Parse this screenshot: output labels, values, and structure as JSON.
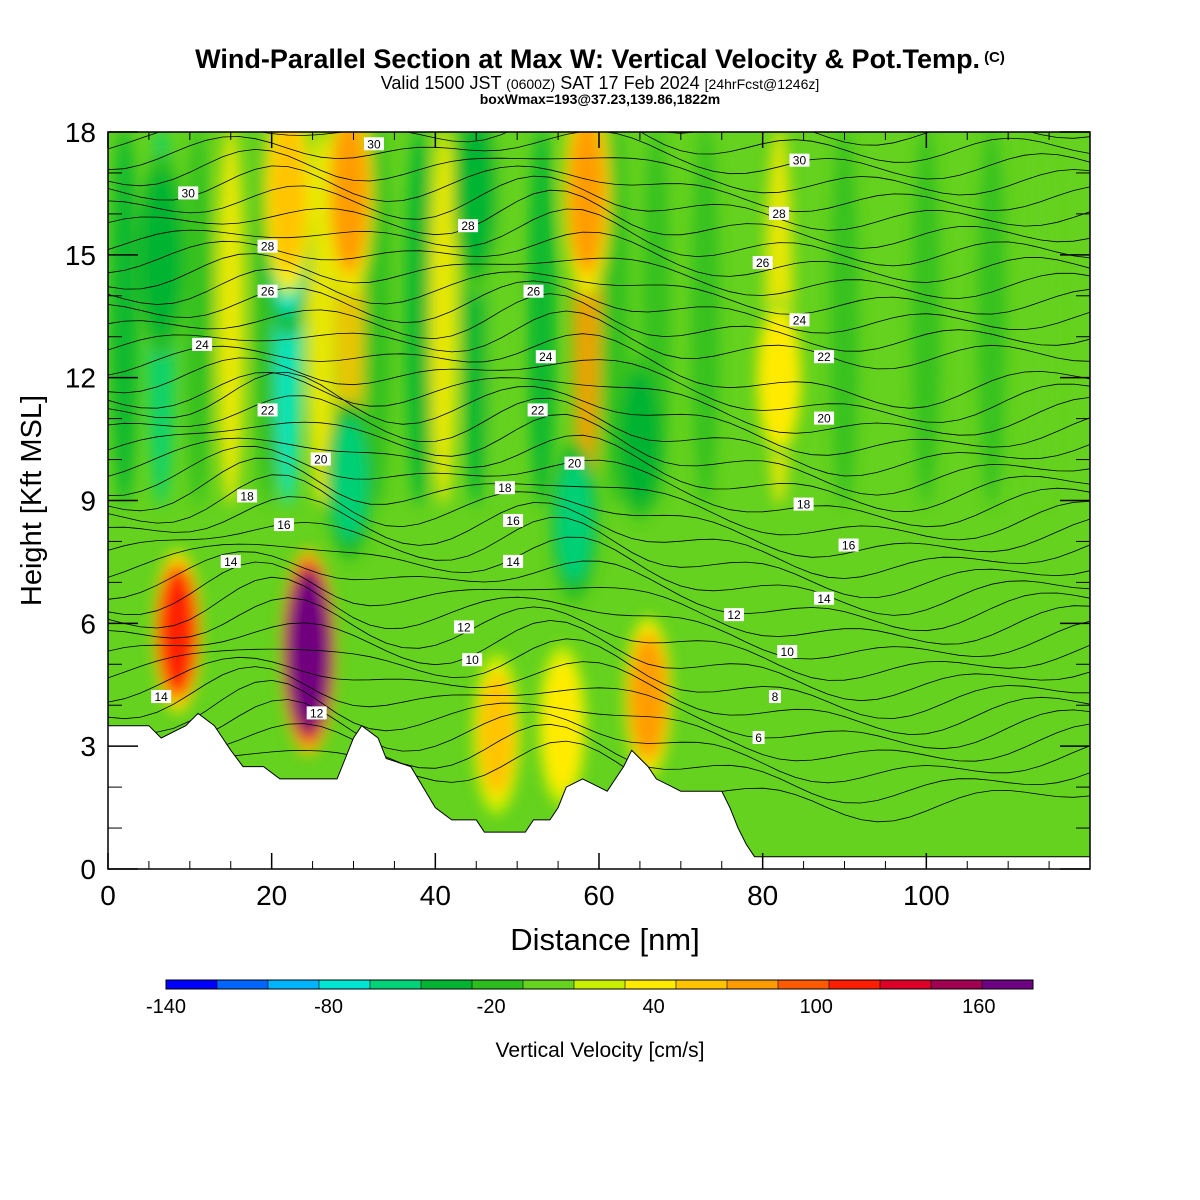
{
  "title": {
    "main": "Wind-Parallel Section at Max W: Vertical Velocity & Pot.Temp.",
    "copyright": "(C)",
    "valid_prefix": "Valid 1500 JST",
    "valid_utc": "(0600Z)",
    "valid_date": "SAT 17 Feb 2024",
    "forecast": "[24hrFcst@1246z]",
    "box_info": "boxWmax=193@37.23,139.86,1822m"
  },
  "chart_data": {
    "type": "heatmap",
    "xlabel": "Distance [nm]",
    "ylabel": "Height [Kft MSL]",
    "xlim": [
      0,
      120
    ],
    "ylim": [
      0,
      18
    ],
    "x_ticks": [
      0,
      20,
      40,
      60,
      80,
      100
    ],
    "y_ticks": [
      0,
      3,
      6,
      9,
      12,
      15,
      18
    ],
    "colorbar": {
      "label": "Vertical Velocity [cm/s]",
      "range": [
        -140,
        180
      ],
      "ticks": [
        -140,
        -80,
        -20,
        40,
        100,
        160
      ],
      "colors": [
        "#0000ff",
        "#0066ff",
        "#00b4ff",
        "#00e6d2",
        "#00d278",
        "#00b432",
        "#2dbe1e",
        "#64d21e",
        "#c8ee00",
        "#ffeb00",
        "#ffc300",
        "#ff9b00",
        "#ff5a00",
        "#ff1e00",
        "#dc0028",
        "#a00050",
        "#6e0082"
      ]
    },
    "terrain_top_kft": [
      [
        0,
        3.5
      ],
      [
        5,
        3.5
      ],
      [
        6.5,
        3.2
      ],
      [
        9.5,
        3.5
      ],
      [
        11,
        3.8
      ],
      [
        13,
        3.5
      ],
      [
        14,
        3.2
      ],
      [
        15,
        2.9
      ],
      [
        16.5,
        2.5
      ],
      [
        19,
        2.5
      ],
      [
        21,
        2.2
      ],
      [
        28,
        2.2
      ],
      [
        29,
        2.7
      ],
      [
        30,
        3.2
      ],
      [
        31,
        3.5
      ],
      [
        33,
        3.2
      ],
      [
        34,
        2.7
      ],
      [
        37,
        2.5
      ],
      [
        38.5,
        2.0
      ],
      [
        40,
        1.5
      ],
      [
        42,
        1.2
      ],
      [
        45,
        1.2
      ],
      [
        46,
        0.9
      ],
      [
        51,
        0.9
      ],
      [
        52,
        1.2
      ],
      [
        54,
        1.2
      ],
      [
        55,
        1.5
      ],
      [
        56,
        2.0
      ],
      [
        58,
        2.2
      ],
      [
        60,
        2.0
      ],
      [
        61,
        1.9
      ],
      [
        62,
        2.2
      ],
      [
        63,
        2.5
      ],
      [
        64,
        2.9
      ],
      [
        66,
        2.5
      ],
      [
        67,
        2.2
      ],
      [
        69,
        2.0
      ],
      [
        70,
        1.9
      ],
      [
        72,
        1.9
      ],
      [
        75,
        1.9
      ],
      [
        76,
        1.5
      ],
      [
        77,
        1.0
      ],
      [
        78,
        0.6
      ],
      [
        79,
        0.3
      ],
      [
        80,
        0.3
      ],
      [
        120,
        0.3
      ]
    ],
    "wmax_cells": [
      {
        "x": 8.5,
        "y": 5.8,
        "w_cms": 120
      },
      {
        "x": 24.5,
        "y": 5.3,
        "w_cms": 193
      },
      {
        "x": 58.5,
        "y": 16.5,
        "w_cms": 80
      },
      {
        "x": 29.5,
        "y": 16.5,
        "w_cms": 75
      },
      {
        "x": 22,
        "y": 16.5,
        "w_cms": 60
      },
      {
        "x": 66,
        "y": 4.2,
        "w_cms": 70
      },
      {
        "x": 47.5,
        "y": 3.3,
        "w_cms": 50
      },
      {
        "x": 55.5,
        "y": 3.5,
        "w_cms": 45
      },
      {
        "x": 82,
        "y": 12,
        "w_cms": 40
      }
    ],
    "wmin_cells": [
      {
        "x": 6.5,
        "y": 15,
        "w_cms": -40
      },
      {
        "x": 22,
        "y": 15.5,
        "w_cms": -70
      },
      {
        "x": 29.5,
        "y": 9.5,
        "w_cms": -50
      },
      {
        "x": 57,
        "y": 8.5,
        "w_cms": -50
      },
      {
        "x": 65,
        "y": 10.5,
        "w_cms": -40
      },
      {
        "x": 45,
        "y": 16.5,
        "w_cms": -30
      }
    ],
    "theta_contour_labels": [
      {
        "text": "30",
        "x": 9.8,
        "y": 16.5
      },
      {
        "text": "28",
        "x": 19.5,
        "y": 15.2
      },
      {
        "text": "26",
        "x": 19.5,
        "y": 14.1
      },
      {
        "text": "24",
        "x": 11.5,
        "y": 12.8
      },
      {
        "text": "22",
        "x": 19.5,
        "y": 11.2
      },
      {
        "text": "20",
        "x": 26,
        "y": 10.0
      },
      {
        "text": "18",
        "x": 17,
        "y": 9.1
      },
      {
        "text": "16",
        "x": 21.5,
        "y": 8.4
      },
      {
        "text": "14",
        "x": 15,
        "y": 7.5
      },
      {
        "text": "14",
        "x": 6.5,
        "y": 4.2
      },
      {
        "text": "12",
        "x": 25.5,
        "y": 3.8
      },
      {
        "text": "30",
        "x": 32.5,
        "y": 17.7
      },
      {
        "text": "28",
        "x": 44,
        "y": 15.7
      },
      {
        "text": "26",
        "x": 52,
        "y": 14.1
      },
      {
        "text": "24",
        "x": 53.5,
        "y": 12.5
      },
      {
        "text": "22",
        "x": 52.5,
        "y": 11.2
      },
      {
        "text": "20",
        "x": 57,
        "y": 9.9
      },
      {
        "text": "18",
        "x": 48.5,
        "y": 9.3
      },
      {
        "text": "16",
        "x": 49.5,
        "y": 8.5
      },
      {
        "text": "14",
        "x": 49.5,
        "y": 7.5
      },
      {
        "text": "12",
        "x": 43.5,
        "y": 5.9
      },
      {
        "text": "10",
        "x": 44.5,
        "y": 5.1
      },
      {
        "text": "30",
        "x": 84.5,
        "y": 17.3
      },
      {
        "text": "28",
        "x": 82,
        "y": 16.0
      },
      {
        "text": "26",
        "x": 80,
        "y": 14.8
      },
      {
        "text": "24",
        "x": 84.5,
        "y": 13.4
      },
      {
        "text": "22",
        "x": 87.5,
        "y": 12.5
      },
      {
        "text": "20",
        "x": 87.5,
        "y": 11.0
      },
      {
        "text": "18",
        "x": 85,
        "y": 8.9
      },
      {
        "text": "16",
        "x": 90.5,
        "y": 7.9
      },
      {
        "text": "14",
        "x": 87.5,
        "y": 6.6
      },
      {
        "text": "12",
        "x": 76.5,
        "y": 6.2
      },
      {
        "text": "10",
        "x": 83,
        "y": 5.3
      },
      {
        "text": "8",
        "x": 81.5,
        "y": 4.2
      },
      {
        "text": "6",
        "x": 79.5,
        "y": 3.2
      }
    ]
  }
}
